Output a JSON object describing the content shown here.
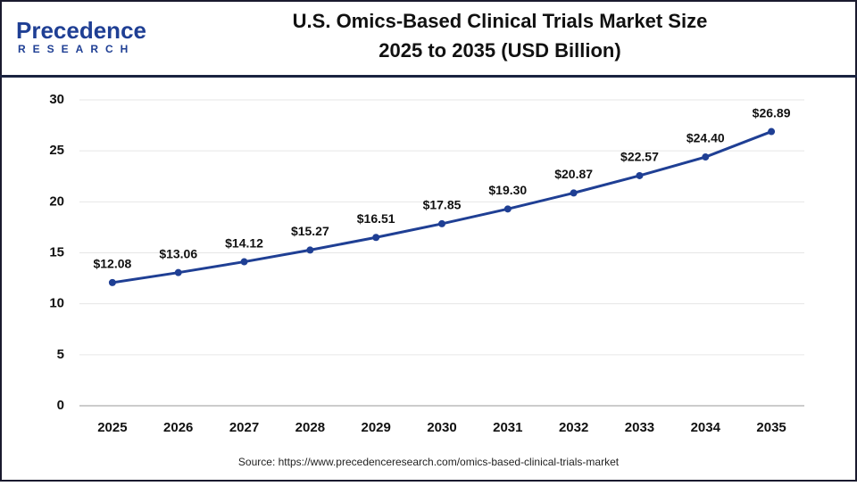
{
  "logo": {
    "name": "Precedence",
    "tagline": "RESEARCH"
  },
  "chart_data": {
    "type": "line",
    "title": [
      "U.S. Omics-Based Clinical Trials Market Size",
      "2025 to 2035 (USD Billion)"
    ],
    "categories": [
      "2025",
      "2026",
      "2027",
      "2028",
      "2029",
      "2030",
      "2031",
      "2032",
      "2033",
      "2034",
      "2035"
    ],
    "values": [
      12.08,
      13.06,
      14.12,
      15.27,
      16.51,
      17.85,
      19.3,
      20.87,
      22.57,
      24.4,
      26.89
    ],
    "value_labels": [
      "$12.08",
      "$13.06",
      "$14.12",
      "$15.27",
      "$16.51",
      "$17.85",
      "$19.30",
      "$20.87",
      "$22.57",
      "$24.40",
      "$26.89"
    ],
    "color": "#1f3f94",
    "ylim": [
      0,
      30
    ],
    "yticks": [
      0,
      5,
      10,
      15,
      20,
      25,
      30
    ],
    "grid": true,
    "source": "Source: https://www.precedenceresearch.com/omics-based-clinical-trials-market"
  }
}
